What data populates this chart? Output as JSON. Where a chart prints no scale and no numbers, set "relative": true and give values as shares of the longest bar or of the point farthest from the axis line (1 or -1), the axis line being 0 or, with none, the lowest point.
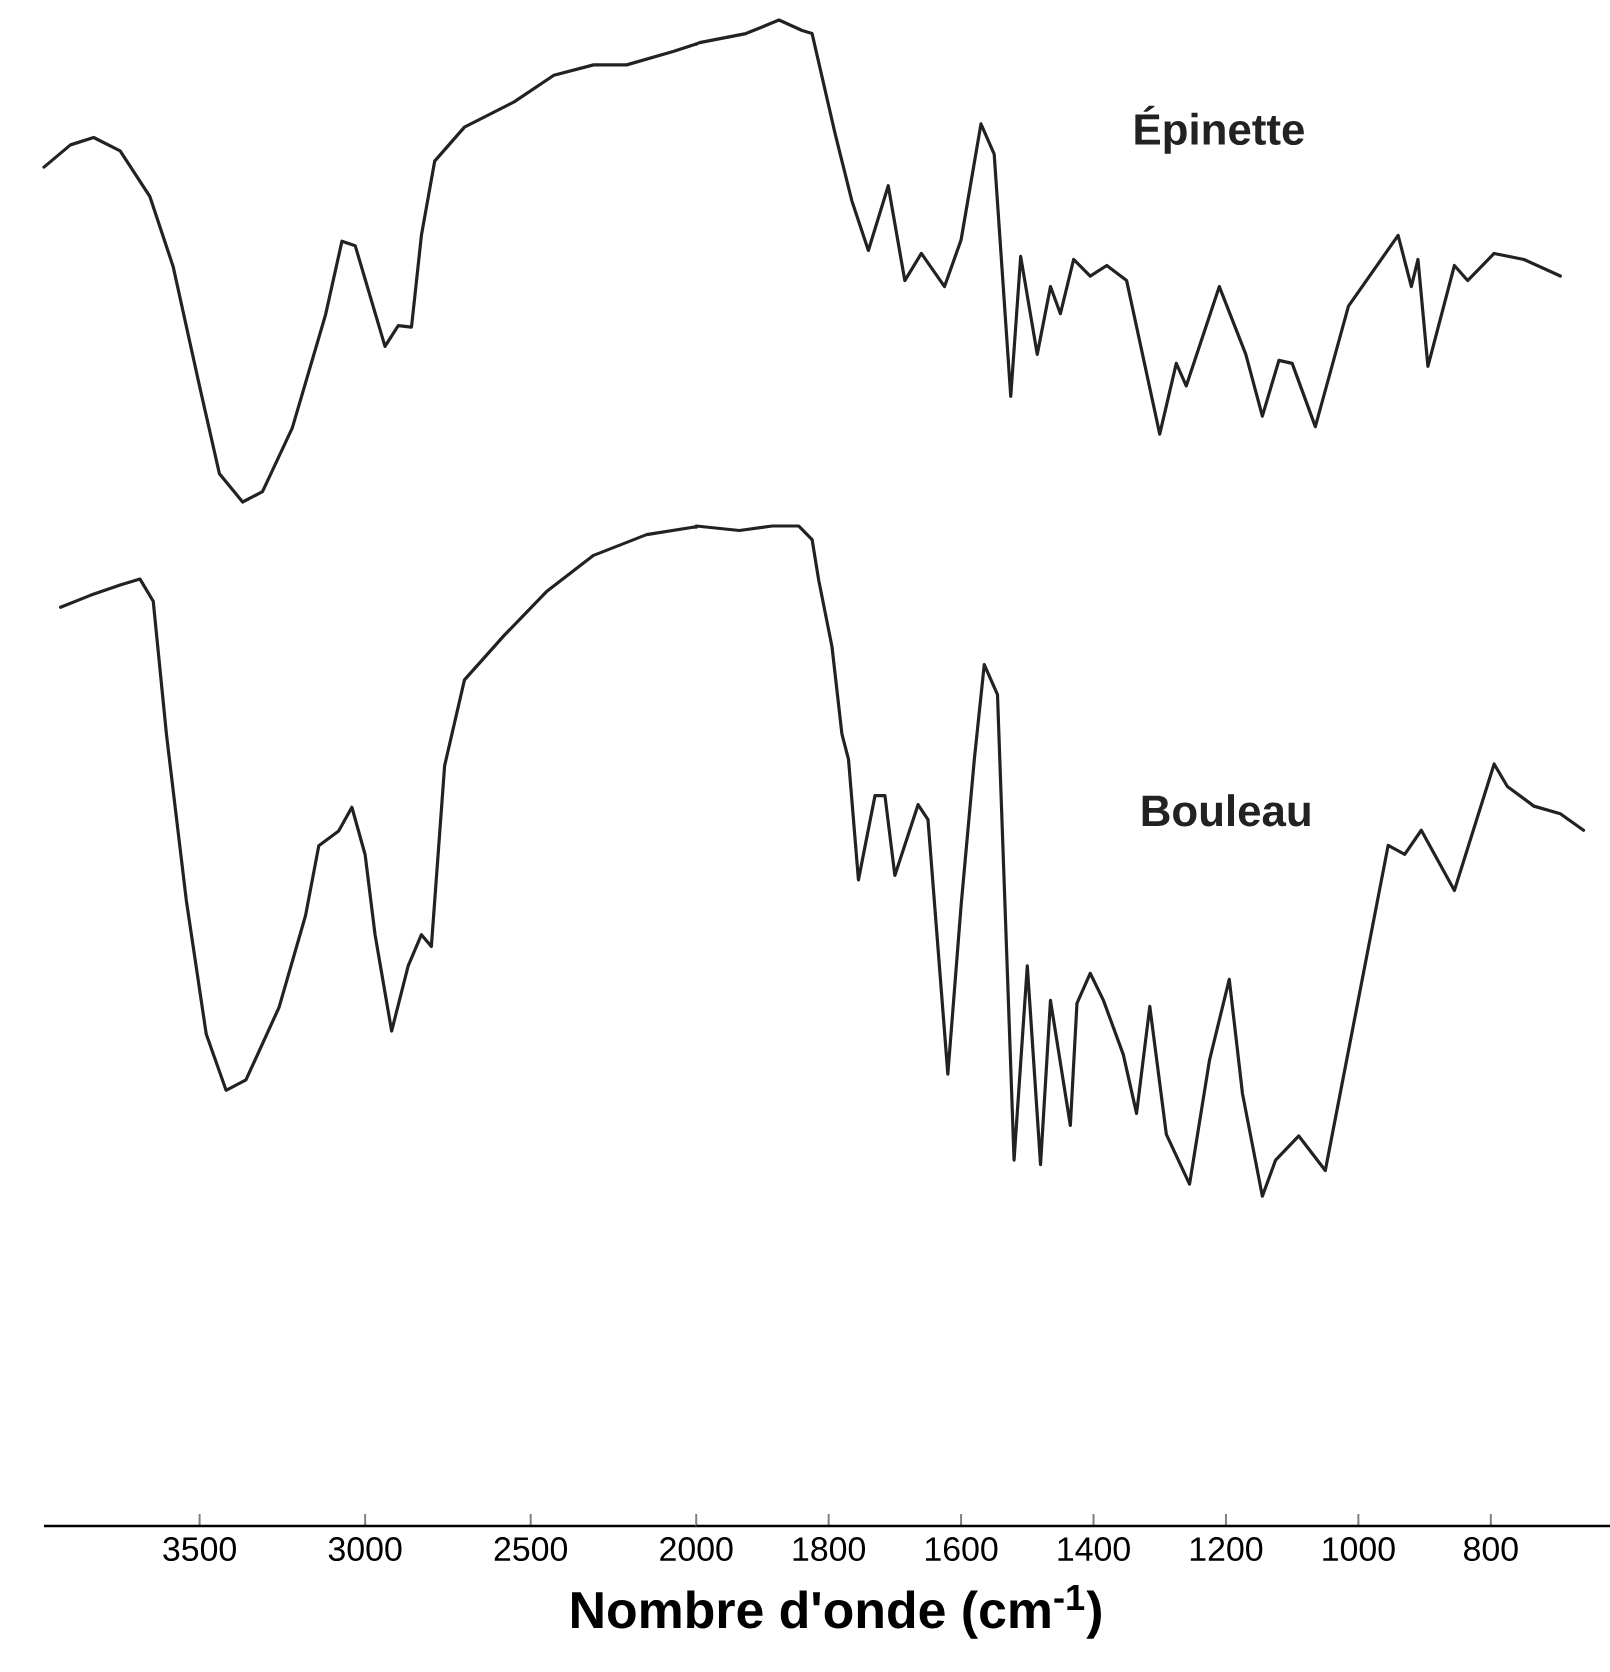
{
  "chart_data": [
    {
      "type": "line",
      "relative": true,
      "xlim": [
        3970,
        2000
      ],
      "xticks": [
        3500,
        3000,
        2500
      ],
      "marker": "none",
      "line_style": "solid",
      "grid": false,
      "legend": false,
      "series": [
        {
          "color": "#222222",
          "x": [
            3970,
            3890,
            3820,
            3740,
            3650,
            3580,
            3500,
            3440,
            3370,
            3310,
            3220,
            3120,
            3070,
            3030,
            2940,
            2900,
            2860,
            2830,
            2790,
            2700,
            2550,
            2430,
            2310,
            2210,
            2070,
            2000
          ],
          "values": [
            0.917,
            0.932,
            0.937,
            0.928,
            0.897,
            0.85,
            0.769,
            0.71,
            0.691,
            0.698,
            0.741,
            0.817,
            0.867,
            0.864,
            0.796,
            0.81,
            0.809,
            0.871,
            0.921,
            0.944,
            0.961,
            0.979,
            0.986,
            0.986,
            0.995,
            1.0
          ]
        },
        {
          "color": "#222222",
          "x": [
            3920,
            3830,
            3740,
            3680,
            3640,
            3600,
            3540,
            3480,
            3420,
            3360,
            3260,
            3180,
            3140,
            3080,
            3040,
            3000,
            2970,
            2920,
            2870,
            2830,
            2800,
            2760,
            2700,
            2580,
            2450,
            2310,
            2150,
            2010,
            2000
          ],
          "values": [
            0.62,
            0.628,
            0.635,
            0.639,
            0.624,
            0.534,
            0.422,
            0.332,
            0.294,
            0.301,
            0.35,
            0.412,
            0.459,
            0.469,
            0.485,
            0.453,
            0.399,
            0.334,
            0.378,
            0.399,
            0.391,
            0.513,
            0.571,
            0.601,
            0.631,
            0.655,
            0.669,
            0.674,
            0.674
          ]
        }
      ]
    },
    {
      "type": "line",
      "relative": true,
      "xlabel": "Nombre d'onde (cm$^{-1}$)",
      "xlim": [
        2000,
        620
      ],
      "xticks": [
        2000,
        1800,
        1600,
        1400,
        1200,
        1000,
        800
      ],
      "marker": "none",
      "line_style": "solid",
      "grid": false,
      "legend": false,
      "series": [
        {
          "name": "Épinette",
          "color": "#222222",
          "x": [
            2000,
            1995,
            1925,
            1875,
            1840,
            1825,
            1790,
            1765,
            1740,
            1710,
            1685,
            1660,
            1625,
            1600,
            1570,
            1550,
            1525,
            1510,
            1485,
            1465,
            1450,
            1430,
            1405,
            1380,
            1350,
            1300,
            1275,
            1260,
            1210,
            1170,
            1145,
            1120,
            1100,
            1065,
            1015,
            940,
            920,
            910,
            895,
            855,
            835,
            795,
            750,
            695
          ],
          "values": [
            0.984,
            0.985,
            0.991,
            1.0,
            0.993,
            0.991,
            0.924,
            0.88,
            0.847,
            0.89,
            0.827,
            0.845,
            0.823,
            0.854,
            0.931,
            0.911,
            0.75,
            0.843,
            0.778,
            0.823,
            0.805,
            0.841,
            0.83,
            0.837,
            0.827,
            0.725,
            0.772,
            0.757,
            0.823,
            0.778,
            0.737,
            0.774,
            0.772,
            0.73,
            0.81,
            0.857,
            0.823,
            0.841,
            0.77,
            0.837,
            0.827,
            0.845,
            0.841,
            0.83
          ]
        },
        {
          "name": "Bouleau",
          "color": "#222222",
          "x": [
            2000,
            1935,
            1885,
            1845,
            1825,
            1815,
            1795,
            1780,
            1770,
            1755,
            1730,
            1715,
            1700,
            1665,
            1650,
            1620,
            1600,
            1580,
            1565,
            1545,
            1520,
            1500,
            1480,
            1465,
            1435,
            1425,
            1405,
            1385,
            1355,
            1335,
            1315,
            1290,
            1255,
            1225,
            1195,
            1175,
            1145,
            1125,
            1090,
            1050,
            955,
            930,
            905,
            855,
            795,
            775,
            735,
            695,
            660
          ],
          "values": [
            0.664,
            0.661,
            0.664,
            0.664,
            0.655,
            0.628,
            0.584,
            0.526,
            0.509,
            0.429,
            0.485,
            0.485,
            0.432,
            0.479,
            0.469,
            0.3,
            0.412,
            0.509,
            0.572,
            0.552,
            0.243,
            0.372,
            0.24,
            0.349,
            0.266,
            0.347,
            0.367,
            0.349,
            0.313,
            0.274,
            0.345,
            0.26,
            0.227,
            0.309,
            0.363,
            0.287,
            0.219,
            0.243,
            0.259,
            0.236,
            0.452,
            0.446,
            0.462,
            0.422,
            0.506,
            0.491,
            0.478,
            0.473,
            0.462
          ]
        }
      ]
    }
  ]
}
